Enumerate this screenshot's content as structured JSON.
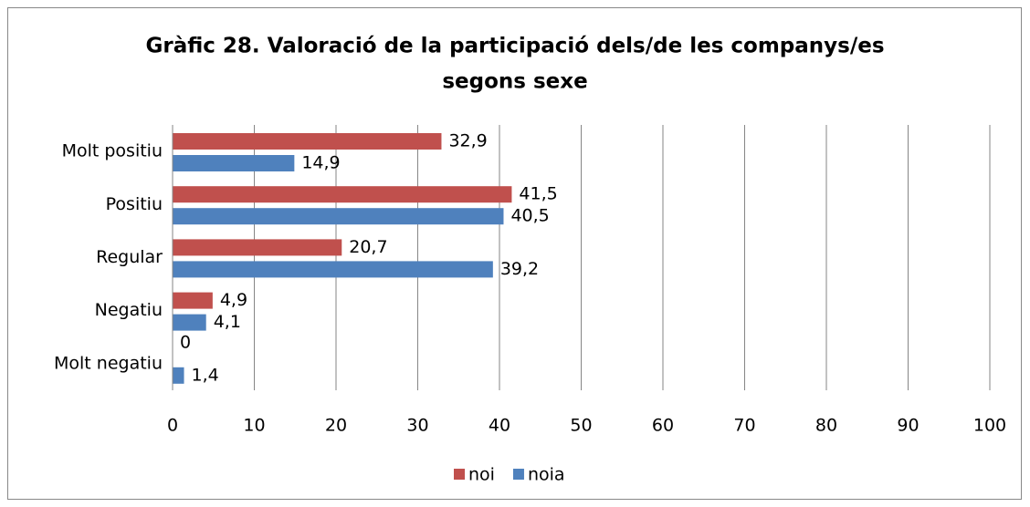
{
  "chart_data": {
    "type": "bar",
    "orientation": "horizontal",
    "title": [
      "Gràfic 28. Valoració de la participació dels/de les companys/es",
      "segons sexe"
    ],
    "categories": [
      "Molt positiu",
      "Positiu",
      "Regular",
      "Negatiu",
      "Molt negatiu"
    ],
    "series": [
      {
        "name": "noi",
        "color": "#c0504d",
        "values": [
          32.9,
          41.5,
          20.7,
          4.9,
          0
        ],
        "value_labels": [
          "32,9",
          "41,5",
          "20,7",
          "4,9",
          "0"
        ]
      },
      {
        "name": "noia",
        "color": "#4f81bd",
        "values": [
          14.9,
          40.5,
          39.2,
          4.1,
          1.4
        ],
        "value_labels": [
          "14,9",
          "40,5",
          "39,2",
          "4,1",
          "1,4"
        ]
      }
    ],
    "xlim": [
      0,
      100
    ],
    "xticks": [
      0,
      10,
      20,
      30,
      40,
      50,
      60,
      70,
      80,
      90,
      100
    ],
    "grid": true,
    "legend": "bottom"
  }
}
